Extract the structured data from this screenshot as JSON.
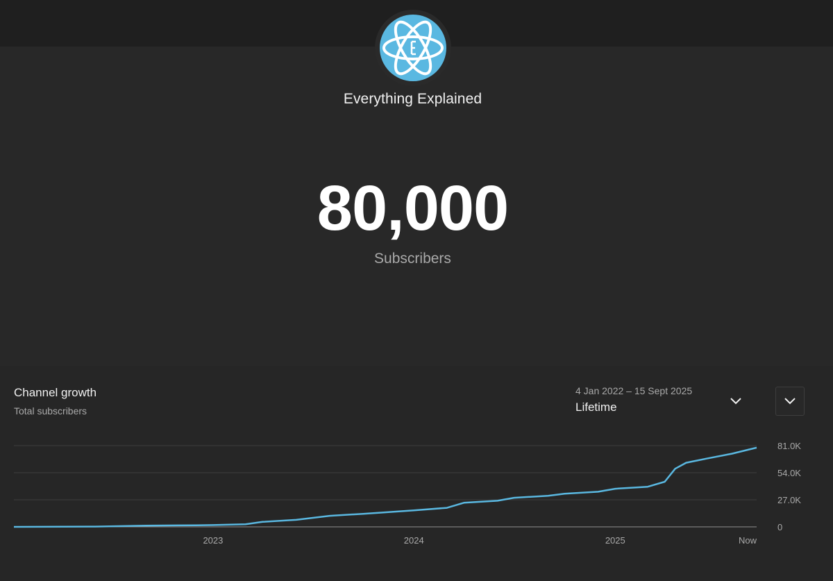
{
  "channel": {
    "name": "Everything Explained",
    "subscriber_count": "80,000",
    "subscriber_label": "Subscribers",
    "avatar_icon": "atom-icon",
    "avatar_color": "#5ab8e1"
  },
  "growth_panel": {
    "title": "Channel growth",
    "subtitle": "Total subscribers",
    "date_range": "4 Jan 2022 – 15 Sept 2025",
    "period": "Lifetime",
    "period_icon": "chevron-down-icon",
    "expand_icon": "chevron-down-icon"
  },
  "chart_data": {
    "type": "line",
    "title": "Channel growth",
    "subtitle": "Total subscribers",
    "x_ticks": [
      "2023",
      "2024",
      "2025",
      "Now"
    ],
    "y_ticks": [
      "0",
      "27.0K",
      "54.0K",
      "81.0K"
    ],
    "ylim": [
      0,
      81000
    ],
    "xlim": [
      "2022-01-04",
      "2025-09-15"
    ],
    "grid": true,
    "line_color": "#5ab8e1",
    "series": [
      {
        "values": [
          [
            "2022-01-04",
            0
          ],
          [
            "2022-06-01",
            300
          ],
          [
            "2022-09-01",
            1200
          ],
          [
            "2022-12-01",
            1600
          ],
          [
            "2023-01-01",
            1800
          ],
          [
            "2023-03-01",
            2600
          ],
          [
            "2023-04-01",
            5000
          ],
          [
            "2023-06-01",
            7000
          ],
          [
            "2023-08-01",
            11000
          ],
          [
            "2023-10-01",
            13000
          ],
          [
            "2024-01-01",
            16500
          ],
          [
            "2024-03-01",
            19000
          ],
          [
            "2024-04-01",
            24000
          ],
          [
            "2024-06-01",
            26000
          ],
          [
            "2024-07-01",
            29000
          ],
          [
            "2024-09-01",
            31000
          ],
          [
            "2024-10-01",
            33000
          ],
          [
            "2024-12-01",
            35000
          ],
          [
            "2025-01-01",
            38000
          ],
          [
            "2025-03-01",
            40000
          ],
          [
            "2025-04-01",
            45000
          ],
          [
            "2025-04-20",
            58000
          ],
          [
            "2025-05-10",
            64000
          ],
          [
            "2025-06-15",
            68000
          ],
          [
            "2025-08-01",
            73000
          ],
          [
            "2025-09-15",
            79000
          ]
        ]
      }
    ]
  }
}
